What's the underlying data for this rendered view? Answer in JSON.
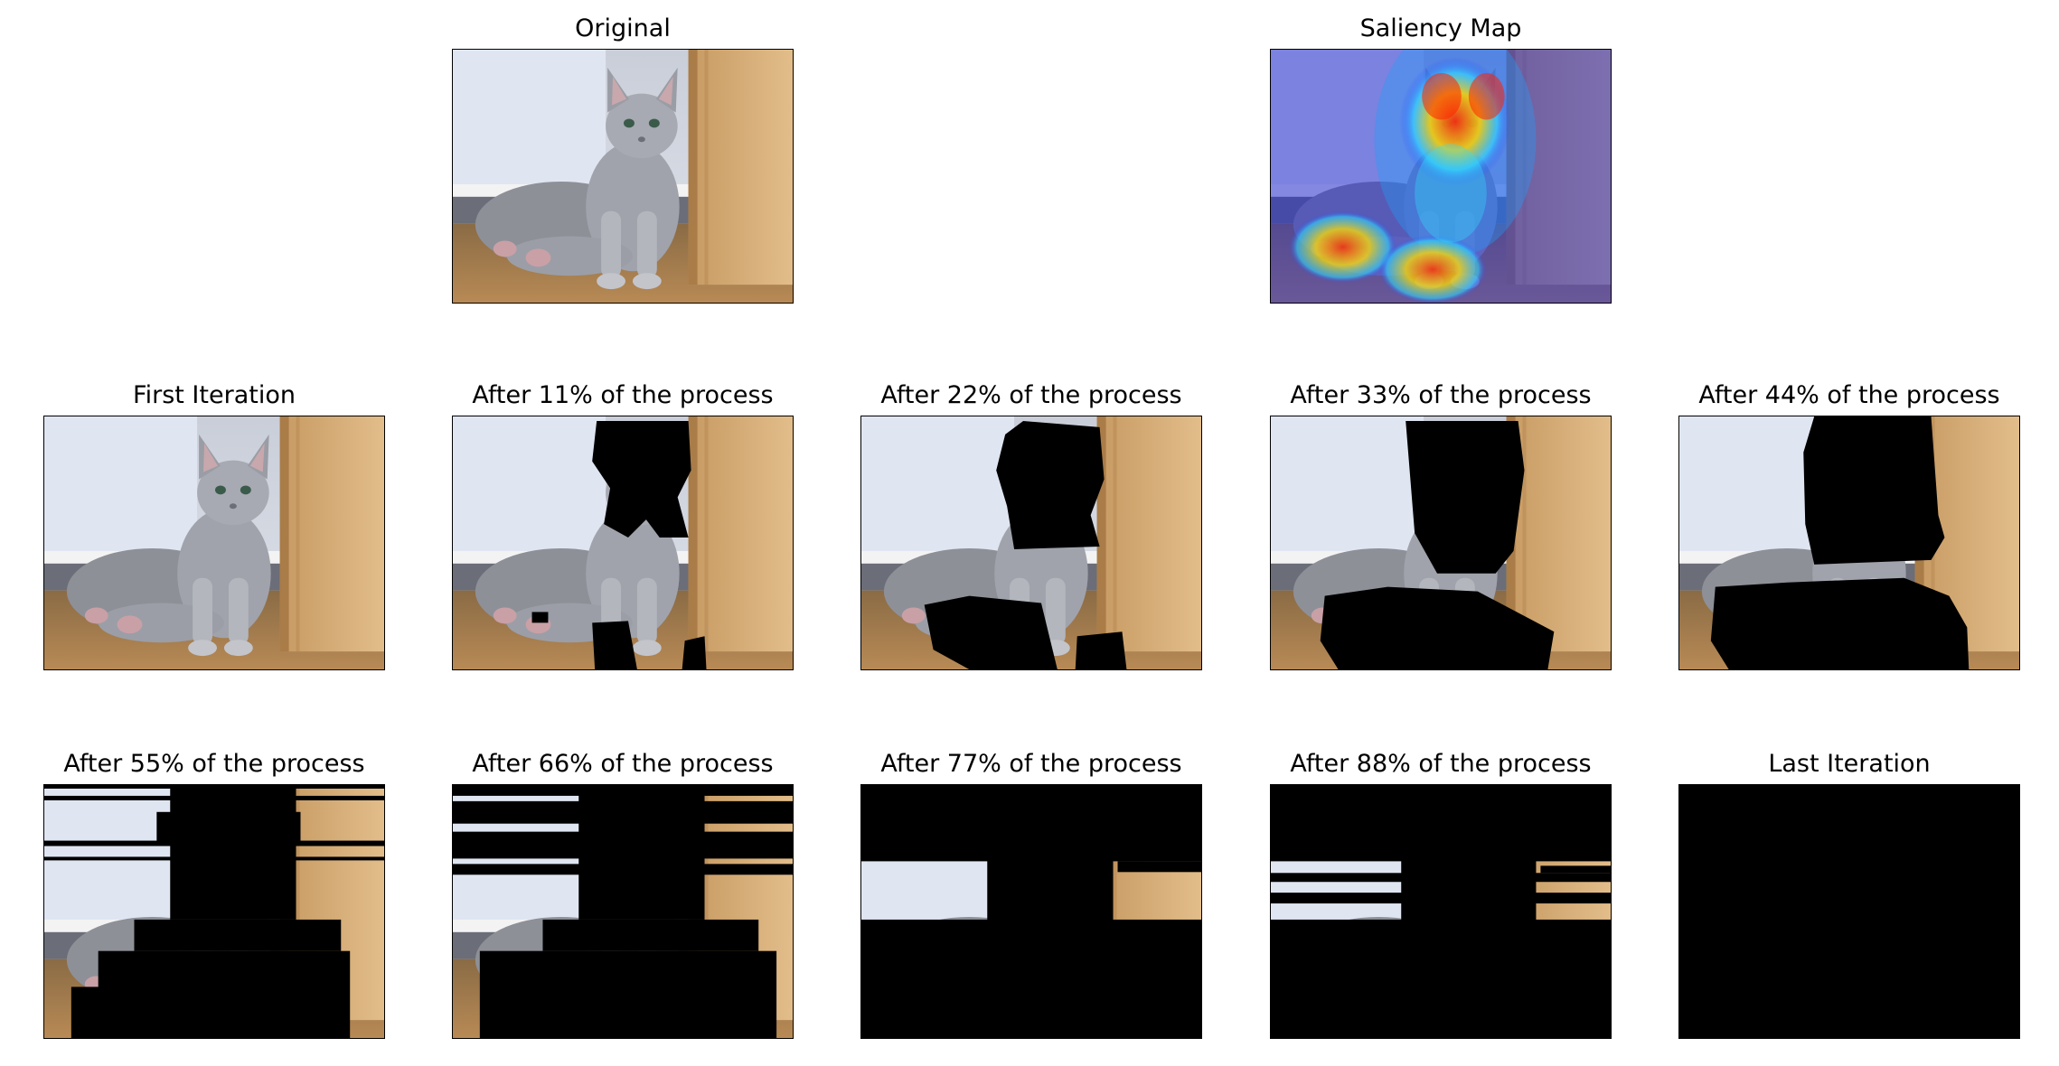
{
  "panels": [
    {
      "id": "original",
      "title": "Original",
      "kind": "cat"
    },
    {
      "id": "saliency",
      "title": "Saliency Map",
      "kind": "saliency"
    },
    {
      "id": "p0",
      "title": "First Iteration",
      "kind": "cat"
    },
    {
      "id": "p11",
      "title": "After 11% of the process",
      "kind": "mask",
      "mask_level": 1
    },
    {
      "id": "p22",
      "title": "After 22% of the process",
      "kind": "mask",
      "mask_level": 2
    },
    {
      "id": "p33",
      "title": "After 33% of the process",
      "kind": "mask",
      "mask_level": 3
    },
    {
      "id": "p44",
      "title": "After 44% of the process",
      "kind": "mask",
      "mask_level": 4
    },
    {
      "id": "p55",
      "title": "After 55% of the process",
      "kind": "mask",
      "mask_level": 5
    },
    {
      "id": "p66",
      "title": "After 66% of the process",
      "kind": "mask",
      "mask_level": 6
    },
    {
      "id": "p77",
      "title": "After 77% of the process",
      "kind": "mask",
      "mask_level": 7
    },
    {
      "id": "p88",
      "title": "After 88% of the process",
      "kind": "mask",
      "mask_level": 8
    },
    {
      "id": "plast",
      "title": "Last Iteration",
      "kind": "mask",
      "mask_level": 9
    }
  ]
}
